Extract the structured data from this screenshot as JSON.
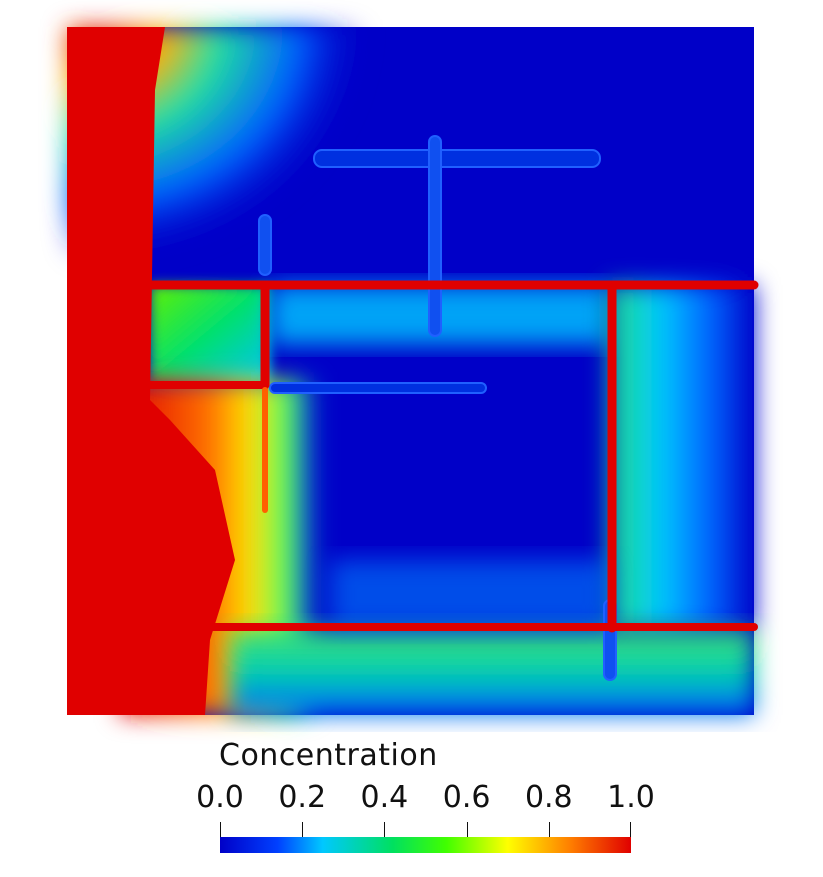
{
  "chart_data": {
    "type": "heatmap",
    "colorbar": {
      "title": "Concentration",
      "min": 0.0,
      "max": 1.0,
      "ticks": [
        {
          "value": 0.0,
          "label": "0.0"
        },
        {
          "value": 0.2,
          "label": "0.2"
        },
        {
          "value": 0.4,
          "label": "0.4"
        },
        {
          "value": 0.6,
          "label": "0.6"
        },
        {
          "value": 0.8,
          "label": "0.8"
        },
        {
          "value": 1.0,
          "label": "1.0"
        }
      ],
      "colormap": [
        "#0000c8",
        "#0040ff",
        "#00c8ff",
        "#00e060",
        "#40ff00",
        "#ffff00",
        "#ff8000",
        "#e00000"
      ]
    },
    "field": {
      "domain": [
        [
          0,
          1
        ],
        [
          0,
          1
        ]
      ],
      "description_values": {
        "left_boundary_concentration": 1.0,
        "background_concentration": 0.0
      }
    }
  }
}
